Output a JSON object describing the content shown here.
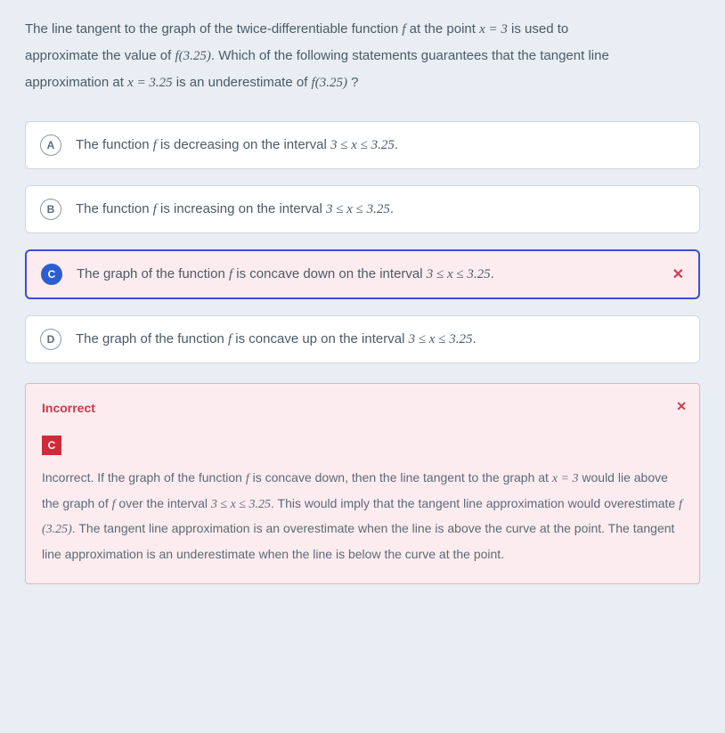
{
  "question": {
    "line1_pre": "The line tangent to the graph of the twice-differentiable function ",
    "line1_f": "f",
    "line1_mid": " at the point ",
    "line1_eq": "x = 3",
    "line1_post": " is used to",
    "line2_pre": "approximate the value of ",
    "line2_fx": "f(3.25)",
    "line2_post": ". Which of the following statements guarantees that the tangent line",
    "line3_pre": "approximation at ",
    "line3_eq": "x = 3.25",
    "line3_mid": " is an underestimate of ",
    "line3_fx": "f(3.25)",
    "line3_post": " ?"
  },
  "options": {
    "a": {
      "letter": "A",
      "pre": "The function ",
      "f": "f",
      "mid": " is decreasing on the interval ",
      "range": "3 ≤ x ≤ 3.25",
      "post": "."
    },
    "b": {
      "letter": "B",
      "pre": "The function ",
      "f": "f",
      "mid": " is increasing on the interval ",
      "range": "3 ≤ x ≤ 3.25",
      "post": "."
    },
    "c": {
      "letter": "C",
      "pre": "The graph of the function ",
      "f": "f",
      "mid": " is concave down on the interval ",
      "range": "3 ≤ x ≤ 3.25",
      "post": ".",
      "x": "✕"
    },
    "d": {
      "letter": "D",
      "pre": "The graph of the function ",
      "f": "f",
      "mid": " is concave up on the interval ",
      "range": "3 ≤ x ≤ 3.25",
      "post": "."
    }
  },
  "feedback": {
    "title": "Incorrect",
    "close": "✕",
    "badge": "C",
    "t1": "Incorrect. If the graph of the function ",
    "f1": "f",
    "t2": " is concave down, then the line tangent to the graph at ",
    "eq1": "x = 3",
    "t3": " would lie above the graph of ",
    "f2": "f",
    "t4": " over the interval ",
    "rng": "3 ≤ x ≤ 3.25",
    "t5": ". This would imply that the tangent line approximation would overestimate ",
    "fx": "f (3.25)",
    "t6": ". The tangent line approximation is an overestimate when the line is above the curve at the point. The tangent line approximation is an underestimate when the line is below the curve at the point."
  }
}
